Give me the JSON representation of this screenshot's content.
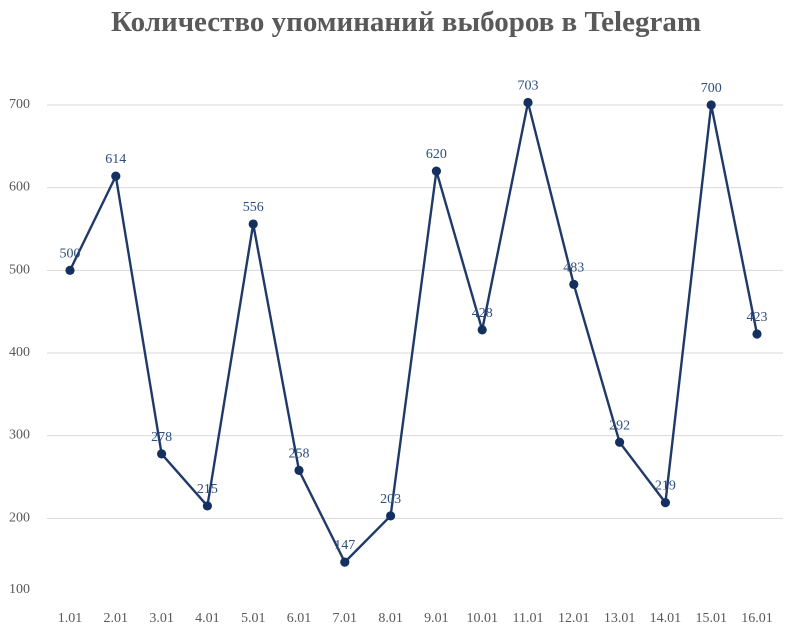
{
  "chart_data": {
    "type": "line",
    "title": "Количество упоминаний выборов в Telegram",
    "xlabel": "",
    "ylabel": "",
    "categories": [
      "1.01",
      "2.01",
      "3.01",
      "4.01",
      "5.01",
      "6.01",
      "7.01",
      "8.01",
      "9.01",
      "10.01",
      "11.01",
      "12.01",
      "13.01",
      "14.01",
      "15.01",
      "16.01"
    ],
    "series": [
      {
        "values": [
          500,
          614,
          278,
          215,
          556,
          258,
          147,
          203,
          620,
          428,
          703,
          483,
          292,
          219,
          700,
          423
        ]
      }
    ],
    "data_labels": [
      "500",
      "614",
      "278",
      "215",
      "556",
      "258",
      "147",
      "203",
      "620",
      "428",
      "703",
      "483",
      "292",
      "219",
      "700",
      "423"
    ],
    "ylim": [
      100,
      700
    ],
    "yticks": [
      "100",
      "200",
      "300",
      "400",
      "500",
      "600",
      "700"
    ],
    "grid": true,
    "legend": "none",
    "colors": {
      "line": "#1f3a68",
      "marker": "#13305e",
      "label": "#2e4e7c",
      "grid": "#d9d9d9",
      "axis_text": "#595959"
    }
  }
}
